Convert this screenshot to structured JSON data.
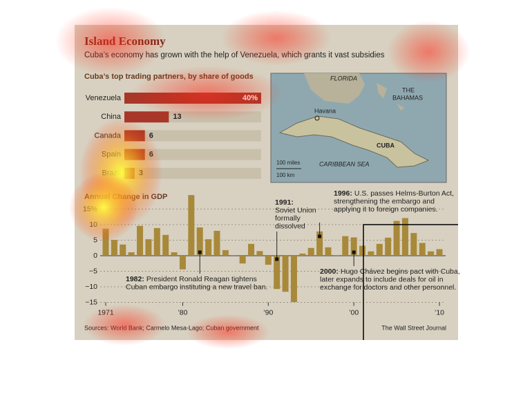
{
  "header": {
    "title": "Island Economy",
    "subtitle": "Cuba’s economy has grown with the help of Venezuela, which grants it vast subsidies"
  },
  "map": {
    "labels": [
      "FLORIDA",
      "THE",
      "BAHAMAS",
      "Havana",
      "CUBA",
      "CARIBBEAN SEA",
      "100 miles",
      "100 km"
    ]
  },
  "chart_data": [
    {
      "type": "hbar",
      "title": "Cuba’s top trading partners, by share of goods",
      "categories": [
        "Venezuela",
        "China",
        "Canada",
        "Spain",
        "Brazil"
      ],
      "values": [
        40,
        13,
        6,
        6,
        3
      ],
      "value_labels": [
        "40%",
        "13",
        "6",
        "6",
        "3"
      ],
      "color": "#a8372a",
      "xlim": [
        0,
        40
      ]
    },
    {
      "type": "bar",
      "title": "Annual Change in GDP",
      "x": [
        1971,
        1972,
        1973,
        1974,
        1975,
        1976,
        1977,
        1978,
        1979,
        1980,
        1981,
        1982,
        1983,
        1984,
        1985,
        1986,
        1987,
        1988,
        1989,
        1990,
        1991,
        1992,
        1993,
        1994,
        1995,
        1996,
        1997,
        1998,
        1999,
        2000,
        2001,
        2002,
        2003,
        2004,
        2005,
        2006,
        2007,
        2008,
        2009,
        2010
      ],
      "values": [
        8.7,
        5.1,
        3.6,
        1.1,
        9.6,
        5.3,
        8.9,
        6.7,
        1.1,
        -4.4,
        19.5,
        9.1,
        5.3,
        8.0,
        1.8,
        0.2,
        -2.5,
        3.8,
        1.5,
        -2.9,
        -10.7,
        -11.6,
        -14.9,
        0.7,
        2.5,
        7.8,
        2.7,
        0.2,
        6.3,
        5.9,
        3.2,
        1.4,
        3.8,
        5.8,
        11.2,
        12.1,
        7.3,
        4.1,
        1.4,
        2.1
      ],
      "color": "#a8893a",
      "ylim": [
        -15,
        20
      ],
      "yticks": [
        {
          "value": 15,
          "label": "15%"
        },
        10,
        5,
        0,
        {
          "value": -5,
          "label": "−5"
        },
        {
          "value": -10,
          "label": "−10"
        },
        {
          "value": -15,
          "label": "−15"
        }
      ],
      "xlim": [
        1971,
        2010
      ],
      "xticks": [
        1971,
        {
          "value": 1980,
          "label": "’80"
        },
        {
          "value": 1990,
          "label": "’90"
        },
        {
          "value": 2000,
          "label": "’00"
        },
        {
          "value": 2010,
          "label": "’10"
        }
      ],
      "grid": true,
      "annotations": [
        {
          "x": 1982,
          "label": "1982:",
          "lines": [
            "President Ronald Reagan tightens",
            "Cuban embargo instituting a new travel ban."
          ]
        },
        {
          "x": 1991,
          "label": "1991:",
          "lines": [
            "Soviet Union",
            "formally",
            "dissolved"
          ]
        },
        {
          "x": 1996,
          "label": "1996:",
          "lines": [
            "U.S. passes Helms-Burton Act,",
            "strengthening the embargo and",
            "applying it to foreign companies."
          ]
        },
        {
          "x": 2000,
          "label": "2000:",
          "lines": [
            "Hugo Chávez begins pact with Cuba,",
            "later expands to include deals for oil in",
            "exchange for doctors and other personnel."
          ]
        }
      ]
    }
  ],
  "footer": {
    "sources": "Sources: World Bank; Carmelo Mesa-Lago; Cuban government",
    "credit": "The Wall Street Journal"
  }
}
